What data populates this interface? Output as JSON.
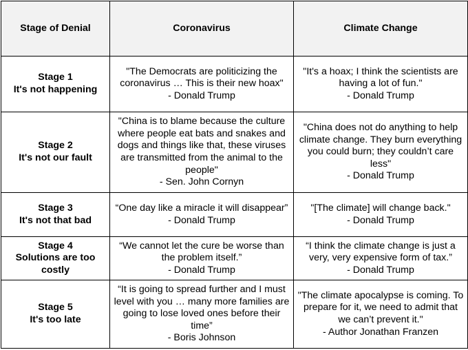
{
  "headers": {
    "stage": "Stage of Denial",
    "coronavirus": "Coronavirus",
    "climate": "Climate Change"
  },
  "rows": [
    {
      "stage_number": "Stage 1",
      "stage_title": "It's not happening",
      "covid_quote": "\"The Democrats are politicizing the coronavirus … This is their new hoax\"",
      "covid_source": "- Donald Trump",
      "climate_quote": "\"It's a hoax; I think the scientists are having a lot of fun.\"",
      "climate_source": "- Donald Trump"
    },
    {
      "stage_number": "Stage 2",
      "stage_title": "It's not our fault",
      "covid_quote": "\"China is to blame because the culture where people eat bats and snakes and dogs and things like that, these viruses are transmitted from the animal to the people\"",
      "covid_source": "- Sen. John Cornyn",
      "climate_quote": "\"China does not do anything to help climate change. They burn everything you could burn; they couldn’t care less\"",
      "climate_source": "- Donald Trump"
    },
    {
      "stage_number": "Stage 3",
      "stage_title": "It's not that bad",
      "covid_quote": "“One day like a miracle it will disappear”",
      "covid_source": "- Donald Trump",
      "climate_quote": "\"[The climate] will change back.\"",
      "climate_source": "- Donald Trump"
    },
    {
      "stage_number": "Stage 4",
      "stage_title": "Solutions are too costly",
      "covid_quote": "“We cannot let the cure be worse than the problem itself.”",
      "covid_source": "- Donald Trump",
      "climate_quote": "“I think the climate change is just a very, very expensive form of tax.”",
      "climate_source": "- Donald Trump"
    },
    {
      "stage_number": "Stage 5",
      "stage_title": "It's too late",
      "covid_quote": "“It is going to spread further and I must level with you … many more families are going to lose loved ones before their time”",
      "covid_source": "- Boris Johnson",
      "climate_quote": "\"The climate apocalypse is coming. To prepare for it, we need to admit that we can’t prevent it.\"",
      "climate_source": "- Author Jonathan Franzen"
    }
  ]
}
